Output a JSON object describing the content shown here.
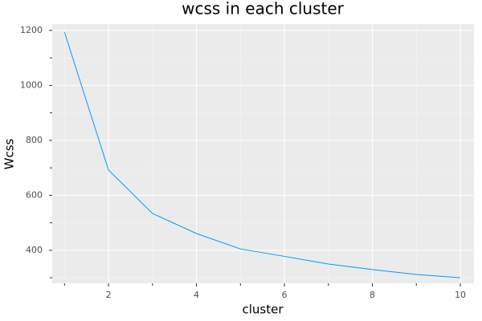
{
  "chart_data": {
    "type": "line",
    "title": "wcss in each cluster",
    "x_label": "cluster",
    "y_label": "Wcss",
    "x": [
      1,
      2,
      3,
      4,
      5,
      6,
      7,
      8,
      9,
      10
    ],
    "series": [
      {
        "color": "#009af9",
        "values": [
          1193,
          692,
          534,
          461,
          405,
          378,
          350,
          330,
          312,
          300
        ]
      }
    ],
    "xlim": [
      0.72,
      10.31
    ],
    "ylim": [
      280,
      1223
    ],
    "xticks": [
      2,
      4,
      6,
      8,
      10
    ],
    "yticks": [
      400,
      600,
      800,
      1000,
      1200
    ],
    "minor_xticks": [
      1,
      3,
      5,
      7,
      9
    ],
    "minor_yticks": [
      300,
      500,
      700,
      900,
      1100
    ],
    "grid": true,
    "background": "#ebebeb"
  }
}
